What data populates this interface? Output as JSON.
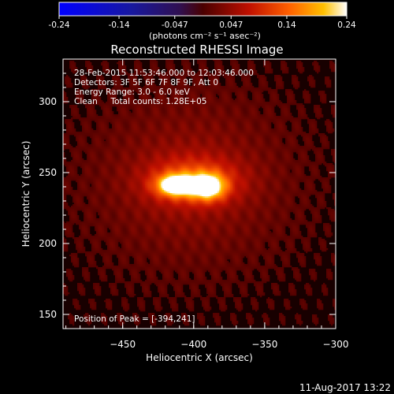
{
  "colorbar": {
    "ticks": [
      "-0.24",
      "-0.14",
      "-0.047",
      "0.047",
      "0.14",
      "0.24"
    ],
    "unit_label": "(photons cm⁻² s⁻¹ asec⁻²)"
  },
  "title": "Reconstructed RHESSI Image",
  "annotations": {
    "time_range": "28-Feb-2015 11:53:46.000 to 12:03:46.000",
    "detectors": "Detectors: 3F 5F 6F 7F 8F 9F, Att 0",
    "energy": "Energy Range: 3.0 - 6.0 keV",
    "clean_counts": "Clean     Total counts: 1.28E+05",
    "peak": "Position of Peak = [-394,241]"
  },
  "footer": {
    "date": "11-Aug-2017 13:22"
  },
  "colors": {
    "plot_bg": "#180000",
    "text": "#ffffff"
  },
  "chart_data": {
    "type": "heatmap",
    "title": "Reconstructed RHESSI Image",
    "xlabel": "Heliocentric X (arcsec)",
    "ylabel": "Heliocentric Y (arcsec)",
    "xlim": [
      -492,
      -300
    ],
    "ylim": [
      140,
      330
    ],
    "x_ticks": [
      -450,
      -400,
      -350,
      -300
    ],
    "y_ticks": [
      150,
      200,
      250,
      300
    ],
    "colorbar_range": [
      -0.24,
      0.24
    ],
    "colorbar_ticks": [
      -0.24,
      -0.14,
      -0.047,
      0.047,
      0.14,
      0.24
    ],
    "colormap": "heat",
    "peak_position": [
      -394,
      241
    ],
    "sources": [
      {
        "x": -412,
        "y": 241,
        "sx": 9,
        "sy": 5,
        "amp": 0.24
      },
      {
        "x": -390,
        "y": 240,
        "sx": 8,
        "sy": 6,
        "amp": 0.22
      },
      {
        "x": -400,
        "y": 244,
        "sx": 22,
        "sy": 11,
        "amp": 0.1
      },
      {
        "x": -402,
        "y": 245,
        "sx": 46,
        "sy": 40,
        "amp": 0.05
      }
    ]
  }
}
